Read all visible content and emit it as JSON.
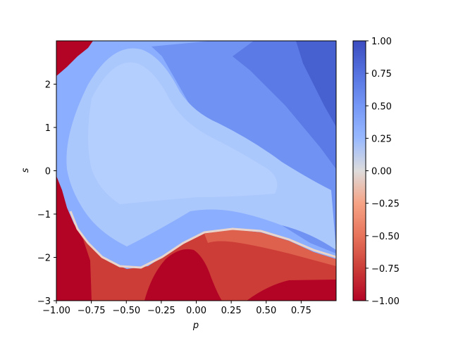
{
  "chart_data": {
    "type": "heatmap",
    "title": "",
    "xlabel": "p",
    "ylabel": "s",
    "xlim": [
      -1.0,
      1.0
    ],
    "ylim": [
      -3.0,
      3.0
    ],
    "x_ticks": [
      "−1.00",
      "−0.75",
      "−0.50",
      "−0.25",
      "0.00",
      "0.25",
      "0.50",
      "0.75"
    ],
    "x_tick_values": [
      -1.0,
      -0.75,
      -0.5,
      -0.25,
      0.0,
      0.25,
      0.5,
      0.75
    ],
    "y_ticks": [
      "−3",
      "−2",
      "−1",
      "0",
      "1",
      "2"
    ],
    "y_tick_values": [
      -3,
      -2,
      -1,
      0,
      1,
      2
    ],
    "colormap": "coolwarm (reversed: blue = 1.00, red = −1.00)",
    "colorbar": {
      "range": [
        -1.0,
        1.0
      ],
      "ticks": [
        "1.00",
        "0.75",
        "0.50",
        "0.25",
        "0.00",
        "−0.25",
        "−0.50",
        "−0.75",
        "−1.00"
      ],
      "tick_values": [
        1.0,
        0.75,
        0.5,
        0.25,
        0.0,
        -0.25,
        -0.5,
        -0.75,
        -1.0
      ]
    },
    "regions": [
      {
        "description": "upper-left corner",
        "value": -1.0
      },
      {
        "description": "upper-right corner",
        "value": 0.95
      },
      {
        "description": "central plateau",
        "value": 0.45
      },
      {
        "description": "left edge below s≈-0.1",
        "value": -1.0
      },
      {
        "description": "bottom band below boundary",
        "value": -0.8
      }
    ],
    "grid": false
  }
}
